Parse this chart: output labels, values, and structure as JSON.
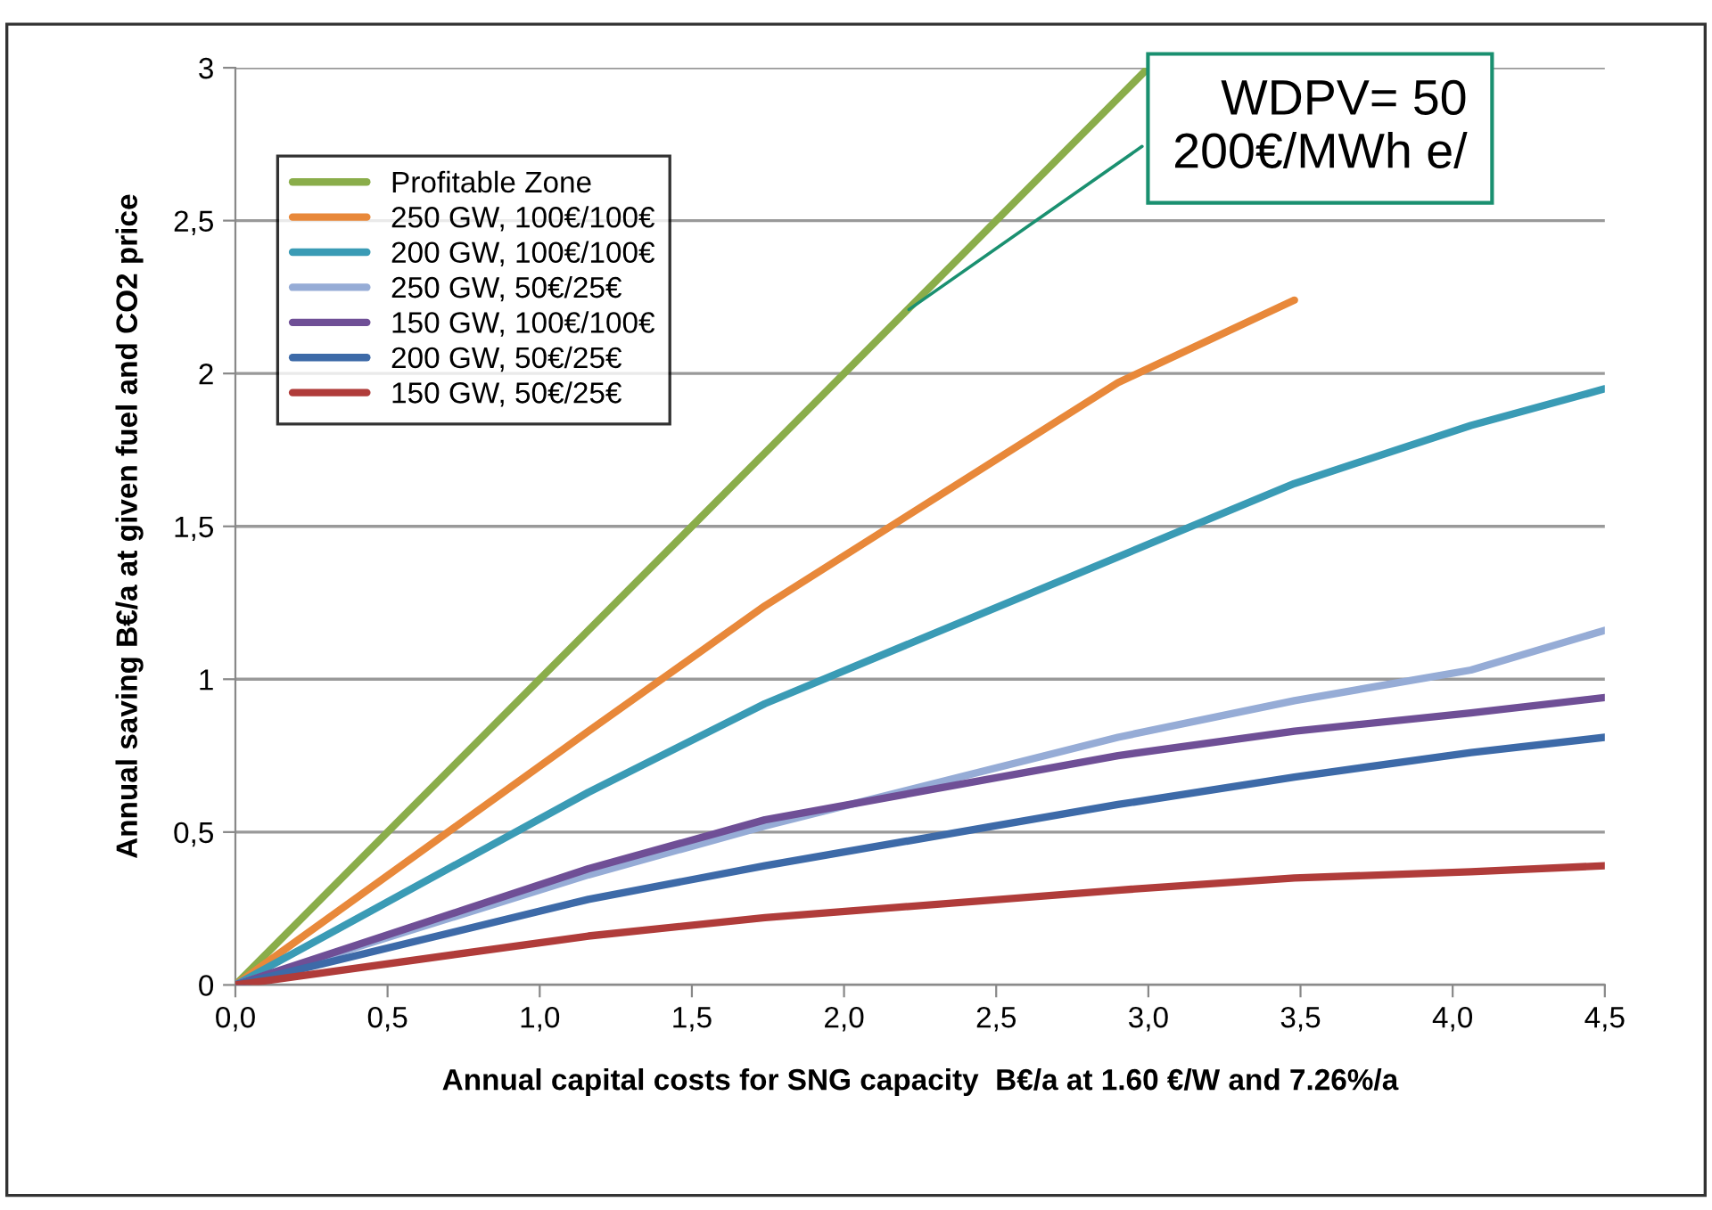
{
  "chart_data": {
    "type": "line",
    "xlabel": "Annual capital costs for SNG capacity  B€/a at 1.60 €/W and 7.26%/a",
    "ylabel": "Annual saving B€/a at given fuel and CO2 price",
    "series": [
      {
        "name": "Profitable Zone",
        "color": "#8aad4a",
        "x": [
          0,
          1.16,
          1.74,
          2.9,
          3.0
        ],
        "values": [
          0,
          1.16,
          1.74,
          2.9,
          3.0
        ]
      },
      {
        "name": "250 GW, 100€/100€",
        "color": "#e8883a",
        "x": [
          0,
          1.16,
          1.74,
          2.9,
          3.48
        ],
        "values": [
          0,
          0.83,
          1.24,
          1.97,
          2.24
        ]
      },
      {
        "name": "200 GW, 100€/100€",
        "color": "#3a9bb5",
        "x": [
          0,
          1.16,
          1.74,
          2.9,
          3.48,
          4.06,
          4.5
        ],
        "values": [
          0,
          0.63,
          0.92,
          1.4,
          1.64,
          1.83,
          1.95
        ]
      },
      {
        "name": "250 GW, 50€/25€",
        "color": "#96acd6",
        "x": [
          0,
          1.16,
          1.74,
          2.9,
          3.48,
          4.06,
          4.5
        ],
        "values": [
          0,
          0.36,
          0.52,
          0.81,
          0.93,
          1.03,
          1.16
        ]
      },
      {
        "name": "150 GW, 100€/100€",
        "color": "#6f4f96",
        "x": [
          0,
          1.16,
          1.74,
          2.9,
          3.48,
          4.06,
          4.5
        ],
        "values": [
          0,
          0.38,
          0.54,
          0.75,
          0.83,
          0.89,
          0.94
        ]
      },
      {
        "name": "200 GW, 50€/25€",
        "color": "#3d6aa8",
        "x": [
          0,
          1.16,
          1.74,
          2.9,
          3.48,
          4.06,
          4.5
        ],
        "values": [
          0,
          0.28,
          0.39,
          0.59,
          0.68,
          0.76,
          0.81
        ]
      },
      {
        "name": "150 GW, 50€/25€",
        "color": "#b03c3a",
        "x": [
          0,
          1.16,
          1.74,
          2.9,
          3.48,
          4.06,
          4.5
        ],
        "values": [
          0,
          0.16,
          0.22,
          0.31,
          0.35,
          0.37,
          0.39
        ]
      }
    ],
    "xlim": [
      0,
      4.5
    ],
    "xticks": [
      {
        "value": 0,
        "label": "0,0"
      },
      {
        "value": 0.5,
        "label": "0,5"
      },
      {
        "value": 1,
        "label": "1,0"
      },
      {
        "value": 1.5,
        "label": "1,5"
      },
      {
        "value": 2,
        "label": "2,0"
      },
      {
        "value": 2.5,
        "label": "2,5"
      },
      {
        "value": 3,
        "label": "3,0"
      },
      {
        "value": 3.5,
        "label": "3,5"
      },
      {
        "value": 4,
        "label": "4,0"
      },
      {
        "value": 4.5,
        "label": "4,5"
      }
    ],
    "ylim": [
      0,
      3
    ],
    "yticks": [
      0,
      {
        "value": 0.5,
        "label": "0,5"
      },
      1,
      {
        "value": 1.5,
        "label": "1,5"
      },
      2,
      {
        "value": 2.5,
        "label": "2,5"
      },
      3
    ],
    "grid": "y",
    "legend": "top left",
    "marker": "none",
    "line_style": "solid",
    "annotations": [
      {
        "text": "WDPV= 50\n200€/MWh e/",
        "x": 2.2,
        "y": 2.2
      }
    ]
  }
}
